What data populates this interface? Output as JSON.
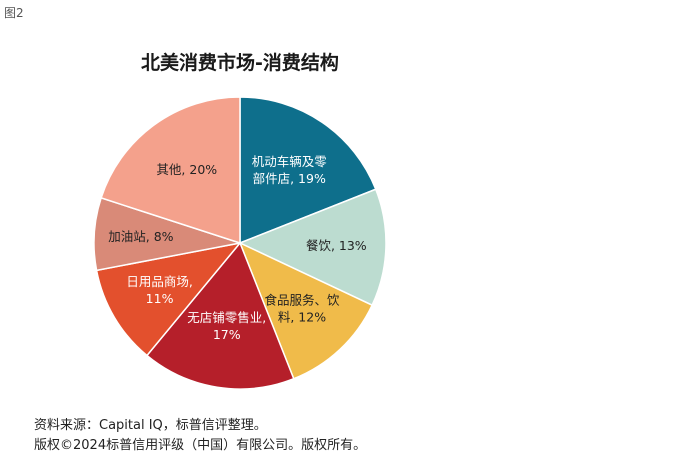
{
  "figure_label": "图2",
  "chart_data": {
    "type": "pie",
    "title": "北美消费市场-消费结构",
    "start_angle_deg": 0,
    "direction": "clockwise",
    "slices": [
      {
        "label_lines": [
          "机动车辆及零",
          "部件店, 19%"
        ],
        "value": 19,
        "color": "#0e6f8c",
        "text_color": "#ffffff"
      },
      {
        "label_lines": [
          "餐饮, 13%"
        ],
        "value": 13,
        "color": "#bcdcd0",
        "text_color": "#222222"
      },
      {
        "label_lines": [
          "食品服务、饮",
          "料, 12%"
        ],
        "value": 12,
        "color": "#f0bb4a",
        "text_color": "#222222"
      },
      {
        "label_lines": [
          "无店铺零售业,",
          "17%"
        ],
        "value": 17,
        "color": "#b51f2a",
        "text_color": "#ffffff"
      },
      {
        "label_lines": [
          "日用品商场,",
          "11%"
        ],
        "value": 11,
        "color": "#e3502d",
        "text_color": "#ffffff"
      },
      {
        "label_lines": [
          "加油站, 8%"
        ],
        "value": 8,
        "color": "#d98a78",
        "text_color": "#222222"
      },
      {
        "label_lines": [
          "其他, 20%"
        ],
        "value": 20,
        "color": "#f4a18c",
        "text_color": "#222222"
      }
    ]
  },
  "footer": {
    "source": "资料来源：Capital IQ，标普信评整理。",
    "copyright": "版权©2024标普信用评级（中国）有限公司。版权所有。"
  }
}
